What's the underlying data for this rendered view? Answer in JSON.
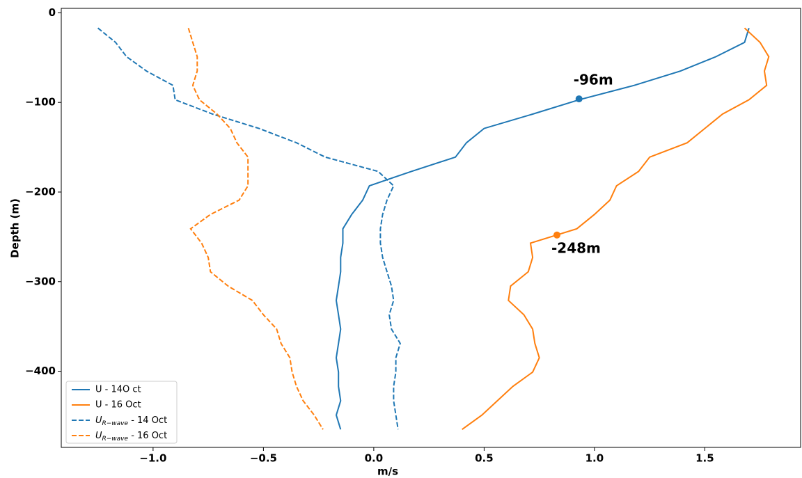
{
  "chart_data": {
    "type": "line",
    "x_label": "m/s",
    "y_label": "Depth (m)",
    "xlim": [
      -1.416,
      1.934
    ],
    "ylim": [
      -485,
      5
    ],
    "xticks": [
      {
        "value": -1,
        "label": "−1.0"
      },
      {
        "value": -0.5,
        "label": "−0.5"
      },
      {
        "value": 0,
        "label": "0.0"
      },
      0.5,
      {
        "value": 1,
        "label": "1.0"
      },
      1.5
    ],
    "yticks": [
      0,
      {
        "value": -100,
        "label": "−100"
      },
      {
        "value": -200,
        "label": "−200"
      },
      {
        "value": -300,
        "label": "−300"
      },
      {
        "value": -400,
        "label": "−400"
      }
    ],
    "legend": "lower left",
    "y": [
      -17,
      -33,
      -49,
      -65,
      -81,
      -97,
      -113,
      -129,
      -145,
      -161,
      -177,
      -193,
      -209,
      -225,
      -241,
      -257,
      -273,
      -289,
      -305,
      -321,
      -337,
      -353,
      -369,
      -385,
      -401,
      -417,
      -433,
      -449,
      -465
    ],
    "series": [
      {
        "name": "U - 14O ct",
        "color": "#1f77b4",
        "linestyle": "solid",
        "values": [
          1.7,
          1.68,
          1.55,
          1.39,
          1.18,
          0.93,
          0.72,
          0.5,
          0.42,
          0.37,
          0.17,
          -0.02,
          -0.05,
          -0.1,
          -0.14,
          -0.14,
          -0.15,
          -0.15,
          -0.16,
          -0.17,
          -0.16,
          -0.15,
          -0.16,
          -0.17,
          -0.16,
          -0.16,
          -0.15,
          -0.17,
          -0.15
        ]
      },
      {
        "name": "U - 16 Oct",
        "color": "#ff7f0e",
        "linestyle": "solid",
        "values": [
          1.68,
          1.75,
          1.79,
          1.77,
          1.78,
          1.7,
          1.58,
          1.5,
          1.42,
          1.25,
          1.2,
          1.1,
          1.07,
          1.0,
          0.92,
          0.71,
          0.72,
          0.7,
          0.62,
          0.61,
          0.68,
          0.72,
          0.73,
          0.75,
          0.72,
          0.63,
          0.56,
          0.49,
          0.4
        ]
      },
      {
        "name": "U_{R−wave} - 14 Oct",
        "color": "#1f77b4",
        "linestyle": "dashed",
        "values": [
          -1.25,
          -1.17,
          -1.12,
          -1.03,
          -0.91,
          -0.9,
          -0.73,
          -0.52,
          -0.35,
          -0.22,
          0.02,
          0.09,
          0.06,
          0.04,
          0.03,
          0.03,
          0.04,
          0.06,
          0.08,
          0.09,
          0.07,
          0.08,
          0.12,
          0.1,
          0.1,
          0.09,
          0.09,
          0.1,
          0.11
        ]
      },
      {
        "name": "U_{R−wave} - 16 Oct",
        "color": "#ff7f0e",
        "linestyle": "dashed",
        "values": [
          -0.84,
          -0.82,
          -0.8,
          -0.8,
          -0.82,
          -0.79,
          -0.71,
          -0.65,
          -0.62,
          -0.57,
          -0.57,
          -0.57,
          -0.61,
          -0.74,
          -0.83,
          -0.78,
          -0.75,
          -0.74,
          -0.66,
          -0.55,
          -0.5,
          -0.44,
          -0.42,
          -0.38,
          -0.37,
          -0.35,
          -0.32,
          -0.27,
          -0.23
        ]
      }
    ],
    "annotations": [
      {
        "text": "-96m",
        "x": 0.93,
        "y": -96,
        "color": "#1f77b4"
      },
      {
        "text": "-248m",
        "x": 0.83,
        "y": -248,
        "color": "#ff7f0e"
      }
    ]
  }
}
